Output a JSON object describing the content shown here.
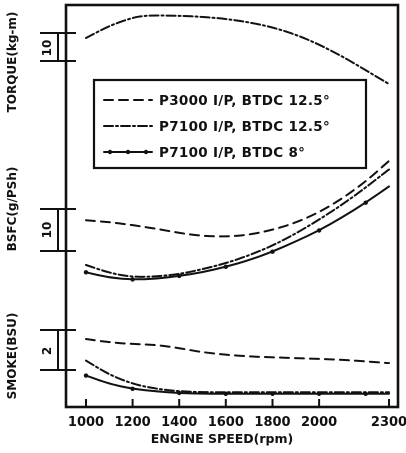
{
  "chart_data": {
    "type": "line",
    "xlabel": "ENGINE SPEED(rpm)",
    "xlim": [
      1000,
      2300
    ],
    "x_ticks": [
      "1000",
      "1200",
      "1400",
      "1600",
      "1800",
      "2000",
      "2300"
    ],
    "x_tick_values": [
      1000,
      1200,
      1400,
      1600,
      1800,
      2000,
      2300
    ],
    "grid": false,
    "legend": {
      "placement": "top-center",
      "entries": [
        {
          "key": "p3000_125",
          "label": "P3000 I/P, BTDC 12.5°",
          "style": "dashed"
        },
        {
          "key": "p7100_125",
          "label": "P7100 I/P, BTDC 12.5°",
          "style": "dash-dot"
        },
        {
          "key": "p7100_8",
          "label": "P7100 I/P, BTDC 8°",
          "style": "solid-dots"
        }
      ]
    },
    "panels": [
      {
        "key": "torque",
        "ylabel": "TORQUE(kg-m)",
        "scale_label": "10",
        "series": [
          {
            "legend": "p7100_125",
            "x": [
              1000,
              1100,
              1200,
              1250,
              1300,
              1400,
              1500,
              1600,
              1700,
              1800,
              1900,
              2000,
              2100,
              2200,
              2300
            ],
            "y": [
              30.0,
              33.2,
              35.3,
              35.8,
              35.9,
              35.8,
              35.5,
              35.0,
              34.1,
              32.8,
              30.9,
              28.3,
              25.2,
              21.6,
              18.0
            ]
          }
        ]
      },
      {
        "key": "bsfc",
        "ylabel": "BSFC(g/PSh)",
        "scale_label": "10",
        "series": [
          {
            "legend": "p3000_125",
            "x": [
              1000,
              1100,
              1200,
              1300,
              1400,
              1500,
              1600,
              1700,
              1800,
              1900,
              2000,
              2100,
              2200,
              2300
            ],
            "y": [
              21.0,
              20.7,
              20.2,
              19.6,
              18.9,
              18.4,
              18.3,
              18.6,
              19.4,
              20.6,
              22.3,
              24.6,
              27.4,
              30.8
            ]
          },
          {
            "legend": "p7100_125",
            "x": [
              1000,
              1100,
              1200,
              1300,
              1400,
              1500,
              1600,
              1700,
              1800,
              1900,
              2000,
              2100,
              2200,
              2300
            ],
            "y": [
              13.6,
              12.3,
              11.6,
              11.7,
              12.1,
              12.9,
              13.9,
              15.2,
              16.8,
              18.8,
              21.1,
              23.6,
              26.4,
              29.4
            ]
          },
          {
            "legend": "p7100_8",
            "x": [
              1000,
              1100,
              1200,
              1300,
              1400,
              1500,
              1600,
              1700,
              1800,
              1900,
              2000,
              2100,
              2200,
              2300
            ],
            "y": [
              12.4,
              11.5,
              11.2,
              11.3,
              11.8,
              12.4,
              13.3,
              14.4,
              15.8,
              17.5,
              19.3,
              21.5,
              23.9,
              26.6
            ]
          }
        ]
      },
      {
        "key": "smoke",
        "ylabel": "SMOKE(BSU)",
        "scale_label": "2",
        "series": [
          {
            "legend": "p3000_125",
            "x": [
              1000,
              1100,
              1200,
              1300,
              1400,
              1500,
              1600,
              1700,
              1800,
              1900,
              2000,
              2100,
              2200,
              2300
            ],
            "y": [
              3.25,
              3.05,
              2.95,
              2.9,
              2.7,
              2.45,
              2.3,
              2.2,
              2.15,
              2.1,
              2.05,
              2.0,
              1.9,
              1.8
            ]
          },
          {
            "legend": "p7100_125",
            "x": [
              1000,
              1100,
              1200,
              1300,
              1400,
              1500,
              1600,
              1700,
              1800,
              1900,
              2000,
              2100,
              2200,
              2300
            ],
            "y": [
              1.95,
              1.1,
              0.55,
              0.25,
              0.1,
              0.05,
              0.05,
              0.05,
              0.05,
              0.05,
              0.05,
              0.05,
              0.05,
              0.05
            ]
          },
          {
            "legend": "p7100_8",
            "x": [
              1000,
              1100,
              1200,
              1300,
              1400,
              1500,
              1600,
              1700,
              1800,
              1900,
              2000,
              2100,
              2200,
              2300
            ],
            "y": [
              1.05,
              0.55,
              0.25,
              0.1,
              0.0,
              -0.05,
              -0.05,
              -0.05,
              -0.05,
              -0.05,
              -0.05,
              -0.05,
              -0.05,
              -0.05
            ]
          }
        ]
      }
    ]
  }
}
